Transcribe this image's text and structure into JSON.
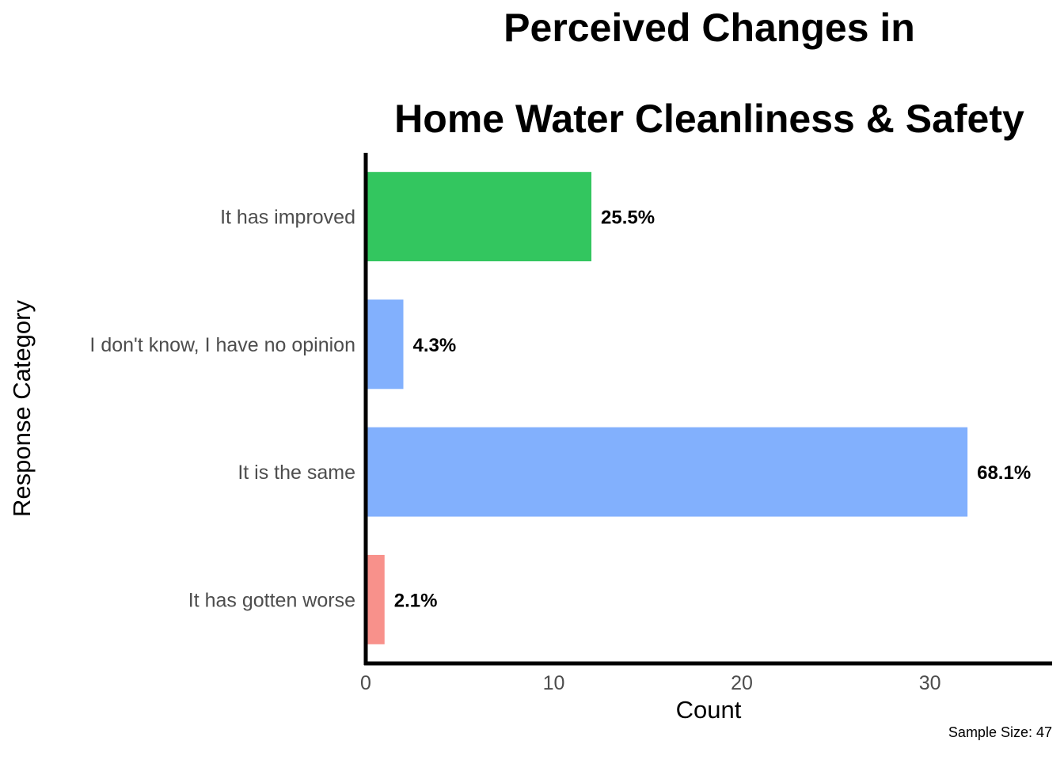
{
  "chart_data": {
    "type": "bar",
    "orientation": "horizontal",
    "title_lines": [
      "Perceived Changes in",
      "Home Water Cleanliness & Safety"
    ],
    "xlabel": "Count",
    "ylabel": "Response Category",
    "caption": "Sample Size: 47",
    "xlim": [
      0,
      36.5
    ],
    "x_ticks": [
      0,
      10,
      20,
      30
    ],
    "grid": false,
    "legend": "none",
    "categories": [
      "It has improved",
      "I don't know, I have no opinion",
      "It is the same",
      "It has gotten worse"
    ],
    "values": [
      12,
      2,
      32,
      1
    ],
    "labels": [
      "25.5%",
      "4.3%",
      "68.1%",
      "2.1%"
    ],
    "colors": [
      "#33c65f",
      "#82b0fd",
      "#82b0fd",
      "#f8918b"
    ]
  }
}
